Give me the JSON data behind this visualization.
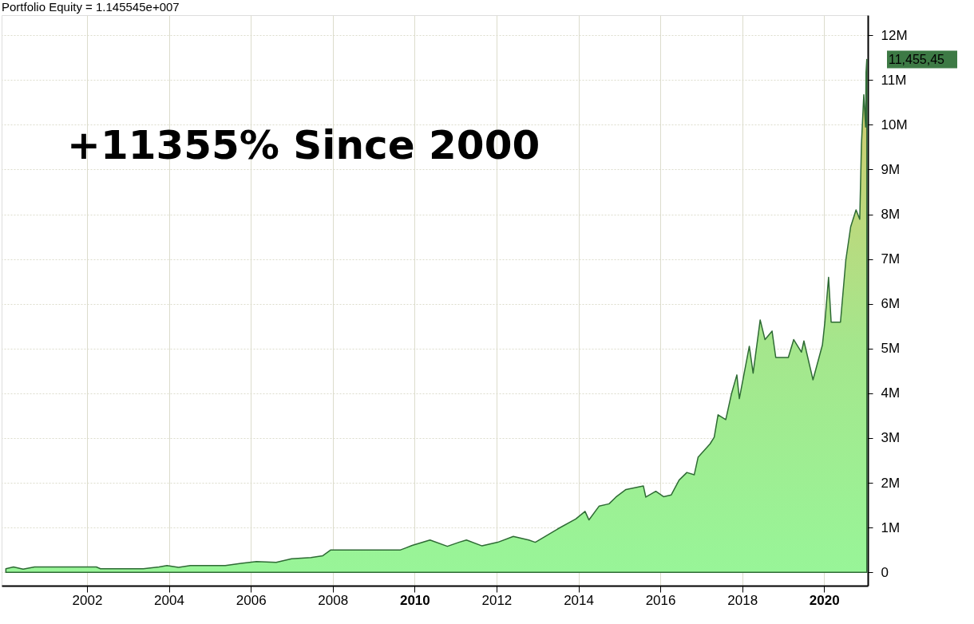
{
  "chart_data": {
    "type": "area",
    "title": "Portfolio Equity = 1.145545e+007",
    "annotations": [
      "+11355% Since 2000",
      "11,455,45"
    ],
    "x": [
      "2000-01-08",
      "2000-03-16",
      "2000-06-10",
      "2000-09-20",
      "2002-03-25",
      "2002-05-01",
      "2003-05-18",
      "2003-10-05",
      "2003-12-15",
      "2004-03-27",
      "2004-07-10",
      "2005-05-18",
      "2005-10-05",
      "2006-02-20",
      "2006-08-15",
      "2006-12-30",
      "2007-06-20",
      "2007-10-05",
      "2007-12-15",
      "2009-08-28",
      "2009-12-10",
      "2010-05-18",
      "2010-10-20",
      "2011-01-30",
      "2011-04-08",
      "2011-08-25",
      "2012-01-12",
      "2012-05-30",
      "2012-10-15",
      "2012-12-12",
      "2013-07-01",
      "2013-12-08",
      "2014-03-01",
      "2014-04-05",
      "2014-07-05",
      "2014-10-01",
      "2014-12-01",
      "2015-03-01",
      "2015-08-03",
      "2015-08-25",
      "2015-11-22",
      "2016-01-30",
      "2016-04-08",
      "2016-06-17",
      "2016-08-25",
      "2016-10-30",
      "2016-12-03",
      "2017-03-20",
      "2017-04-26",
      "2017-05-30",
      "2017-08-07",
      "2017-09-27",
      "2017-11-14",
      "2017-12-06",
      "2018-03-05",
      "2018-04-08",
      "2018-06-10",
      "2018-07-23",
      "2018-09-24",
      "2018-10-27",
      "2019-02-16",
      "2019-04-05",
      "2019-06-13",
      "2019-07-05",
      "2019-09-24",
      "2019-12-17",
      "2020-01-08",
      "2020-02-10",
      "2020-03-04",
      "2020-05-26",
      "2020-07-13",
      "2020-08-25",
      "2020-10-12",
      "2020-11-14",
      "2020-11-29",
      "2020-12-20",
      "2021-01-05",
      "2021-01-09",
      "2021-01-16"
    ],
    "series": [
      {
        "color": "#2e6b34",
        "values": [
          0.08,
          0.12,
          0.07,
          0.12,
          0.12,
          0.08,
          0.08,
          0.12,
          0.15,
          0.11,
          0.15,
          0.15,
          0.2,
          0.24,
          0.22,
          0.3,
          0.33,
          0.37,
          0.5,
          0.5,
          0.6,
          0.72,
          0.58,
          0.67,
          0.72,
          0.59,
          0.67,
          0.8,
          0.72,
          0.67,
          0.97,
          1.19,
          1.36,
          1.17,
          1.48,
          1.53,
          1.68,
          1.85,
          1.93,
          1.68,
          1.81,
          1.69,
          1.73,
          2.06,
          2.23,
          2.18,
          2.57,
          2.87,
          3.02,
          3.52,
          3.41,
          3.99,
          4.41,
          3.88,
          5.05,
          4.45,
          5.64,
          5.2,
          5.39,
          4.8,
          4.8,
          5.2,
          4.92,
          5.17,
          4.3,
          5.08,
          5.59,
          6.59,
          5.59,
          5.59,
          6.98,
          7.72,
          8.1,
          7.89,
          9.56,
          10.67,
          9.95,
          11.17,
          11.46
        ]
      }
    ],
    "xlim": [
      "1999-12-01",
      "2021-01-25"
    ],
    "xticks": [
      {
        "value": "2002-01-01",
        "label": "2002"
      },
      {
        "value": "2004-01-01",
        "label": "2004"
      },
      {
        "value": "2006-01-01",
        "label": "2006"
      },
      {
        "value": "2008-01-01",
        "label": "2008"
      },
      {
        "value": "2010-01-01",
        "label": "2010"
      },
      {
        "value": "2012-01-01",
        "label": "2012"
      },
      {
        "value": "2014-01-01",
        "label": "2014"
      },
      {
        "value": "2016-01-01",
        "label": "2016"
      },
      {
        "value": "2018-01-01",
        "label": "2018"
      },
      {
        "value": "2020-01-01",
        "label": "2020"
      }
    ],
    "ylim": [
      -0.3,
      12.45
    ],
    "yticks": [
      0,
      {
        "value": 1,
        "label": "1M"
      },
      {
        "value": 2,
        "label": "2M"
      },
      {
        "value": 3,
        "label": "3M"
      },
      {
        "value": 4,
        "label": "4M"
      },
      {
        "value": 5,
        "label": "5M"
      },
      {
        "value": 6,
        "label": "6M"
      },
      {
        "value": 7,
        "label": "7M"
      },
      {
        "value": 8,
        "label": "8M"
      },
      {
        "value": 9,
        "label": "9M"
      },
      {
        "value": 10,
        "label": "10M"
      },
      {
        "value": 11,
        "label": "11M"
      },
      {
        "value": 12,
        "label": "12M"
      }
    ],
    "grid": true
  }
}
